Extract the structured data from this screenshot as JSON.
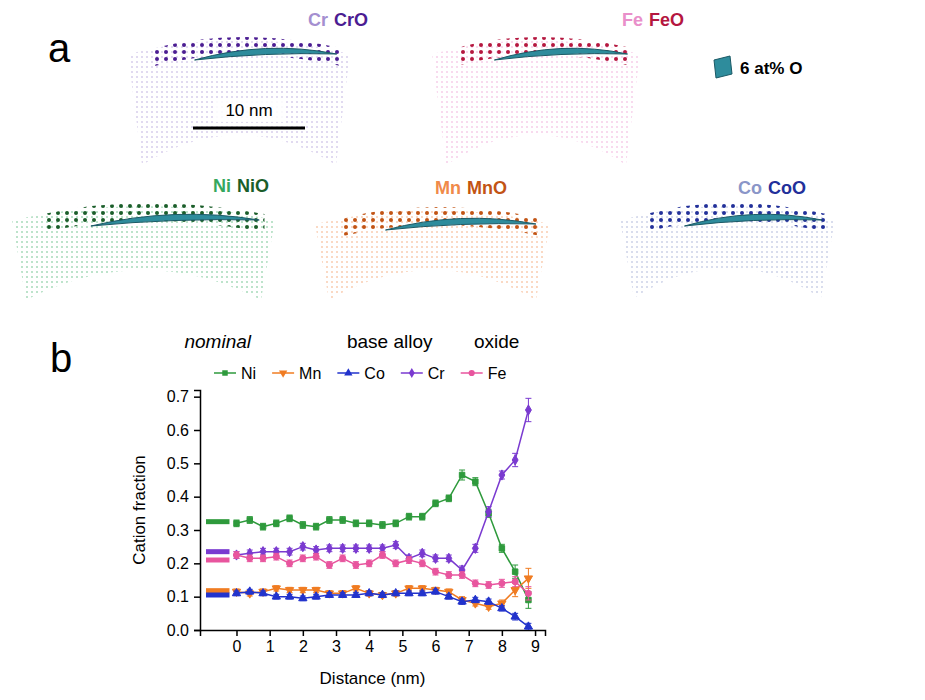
{
  "panel_a": {
    "label": "a",
    "maps": [
      {
        "element": "Cr",
        "oxide": "CrO",
        "element_color": "#a48fd0",
        "oxide_color": "#4b1d92"
      },
      {
        "element": "Fe",
        "oxide": "FeO",
        "element_color": "#e98fca",
        "oxide_color": "#b5173f"
      },
      {
        "element": "Ni",
        "oxide": "NiO",
        "element_color": "#36a85e",
        "oxide_color": "#1b5e2a"
      },
      {
        "element": "Mn",
        "oxide": "MnO",
        "element_color": "#f08a4a",
        "oxide_color": "#c25414"
      },
      {
        "element": "Co",
        "oxide": "CoO",
        "element_color": "#8a96c8",
        "oxide_color": "#22309a"
      }
    ],
    "scale_bar": "10 nm",
    "isosurface": {
      "label": "6 at% O",
      "color": "#2e8c9c"
    }
  },
  "chart_data": {
    "type": "line",
    "panel_label": "b",
    "annotations": [
      "nominal",
      "base alloy",
      "oxide"
    ],
    "x_label": "Distance (nm)",
    "y_label": "Cation fraction",
    "legend": "top",
    "x": [
      0,
      0.4,
      0.8,
      1.2,
      1.6,
      2,
      2.4,
      2.8,
      3.2,
      3.6,
      4,
      4.4,
      4.8,
      5.2,
      5.6,
      6,
      6.4,
      6.8,
      7.2,
      7.6,
      8,
      8.4,
      8.8
    ],
    "xlim": [
      -1.1,
      9.3
    ],
    "xticks": [
      0,
      1,
      2,
      3,
      4,
      5,
      6,
      7,
      8,
      9
    ],
    "ylim": [
      0,
      0.72
    ],
    "yticks": [
      {
        "value": 0,
        "label": "0.0"
      },
      0.1,
      0.2,
      0.3,
      0.4,
      0.5,
      0.6,
      0.7
    ],
    "series": [
      {
        "name": "Ni",
        "color": "#2e9a3c",
        "marker": "square",
        "nominal": 0.325,
        "values": [
          0.32,
          0.33,
          0.31,
          0.32,
          0.335,
          0.315,
          0.31,
          0.33,
          0.33,
          0.32,
          0.32,
          0.315,
          0.32,
          0.34,
          0.34,
          0.38,
          0.395,
          0.465,
          0.445,
          0.35,
          0.245,
          0.175,
          0.09
        ],
        "errors": [
          0.01,
          0.01,
          0.01,
          0.01,
          0.01,
          0.01,
          0.01,
          0.01,
          0.01,
          0.01,
          0.01,
          0.01,
          0.01,
          0.01,
          0.01,
          0.01,
          0.01,
          0.015,
          0.012,
          0.012,
          0.012,
          0.02,
          0.025
        ]
      },
      {
        "name": "Mn",
        "color": "#f07c22",
        "marker": "triangle-down",
        "nominal": 0.118,
        "values": [
          0.115,
          0.11,
          0.115,
          0.125,
          0.12,
          0.12,
          0.12,
          0.11,
          0.11,
          0.125,
          0.11,
          0.105,
          0.11,
          0.125,
          0.125,
          0.12,
          0.115,
          0.09,
          0.08,
          0.07,
          0.08,
          0.12,
          0.155
        ],
        "errors": [
          0.008,
          0.008,
          0.008,
          0.008,
          0.008,
          0.008,
          0.008,
          0.008,
          0.008,
          0.008,
          0.008,
          0.008,
          0.008,
          0.008,
          0.008,
          0.008,
          0.008,
          0.01,
          0.008,
          0.008,
          0.01,
          0.02,
          0.03
        ]
      },
      {
        "name": "Co",
        "color": "#2233cc",
        "marker": "triangle",
        "nominal": 0.105,
        "values": [
          0.11,
          0.115,
          0.11,
          0.1,
          0.1,
          0.095,
          0.1,
          0.105,
          0.105,
          0.105,
          0.11,
          0.105,
          0.11,
          0.11,
          0.11,
          0.115,
          0.1,
          0.085,
          0.09,
          0.085,
          0.065,
          0.04,
          0.01
        ],
        "errors": [
          0.007,
          0.007,
          0.007,
          0.007,
          0.007,
          0.007,
          0.007,
          0.007,
          0.007,
          0.007,
          0.007,
          0.007,
          0.007,
          0.007,
          0.007,
          0.007,
          0.007,
          0.008,
          0.008,
          0.008,
          0.008,
          0.01,
          0.01
        ]
      },
      {
        "name": "Cr",
        "color": "#7a3ad0",
        "marker": "diamond",
        "nominal": 0.235,
        "values": [
          0.225,
          0.23,
          0.235,
          0.235,
          0.235,
          0.25,
          0.24,
          0.245,
          0.245,
          0.245,
          0.245,
          0.245,
          0.255,
          0.215,
          0.23,
          0.215,
          0.215,
          0.18,
          0.245,
          0.355,
          0.465,
          0.51,
          0.66
        ],
        "errors": [
          0.01,
          0.01,
          0.01,
          0.01,
          0.01,
          0.01,
          0.01,
          0.01,
          0.01,
          0.01,
          0.01,
          0.01,
          0.01,
          0.01,
          0.01,
          0.01,
          0.01,
          0.012,
          0.012,
          0.015,
          0.012,
          0.02,
          0.035
        ]
      },
      {
        "name": "Fe",
        "color": "#e8559e",
        "marker": "circle",
        "nominal": 0.21,
        "values": [
          0.225,
          0.215,
          0.215,
          0.22,
          0.2,
          0.215,
          0.22,
          0.195,
          0.215,
          0.195,
          0.2,
          0.225,
          0.2,
          0.21,
          0.2,
          0.175,
          0.165,
          0.165,
          0.14,
          0.135,
          0.14,
          0.145,
          0.11
        ],
        "errors": [
          0.01,
          0.01,
          0.01,
          0.01,
          0.01,
          0.01,
          0.01,
          0.01,
          0.01,
          0.01,
          0.01,
          0.01,
          0.01,
          0.01,
          0.01,
          0.01,
          0.01,
          0.01,
          0.01,
          0.01,
          0.012,
          0.015,
          0.02
        ]
      }
    ]
  }
}
